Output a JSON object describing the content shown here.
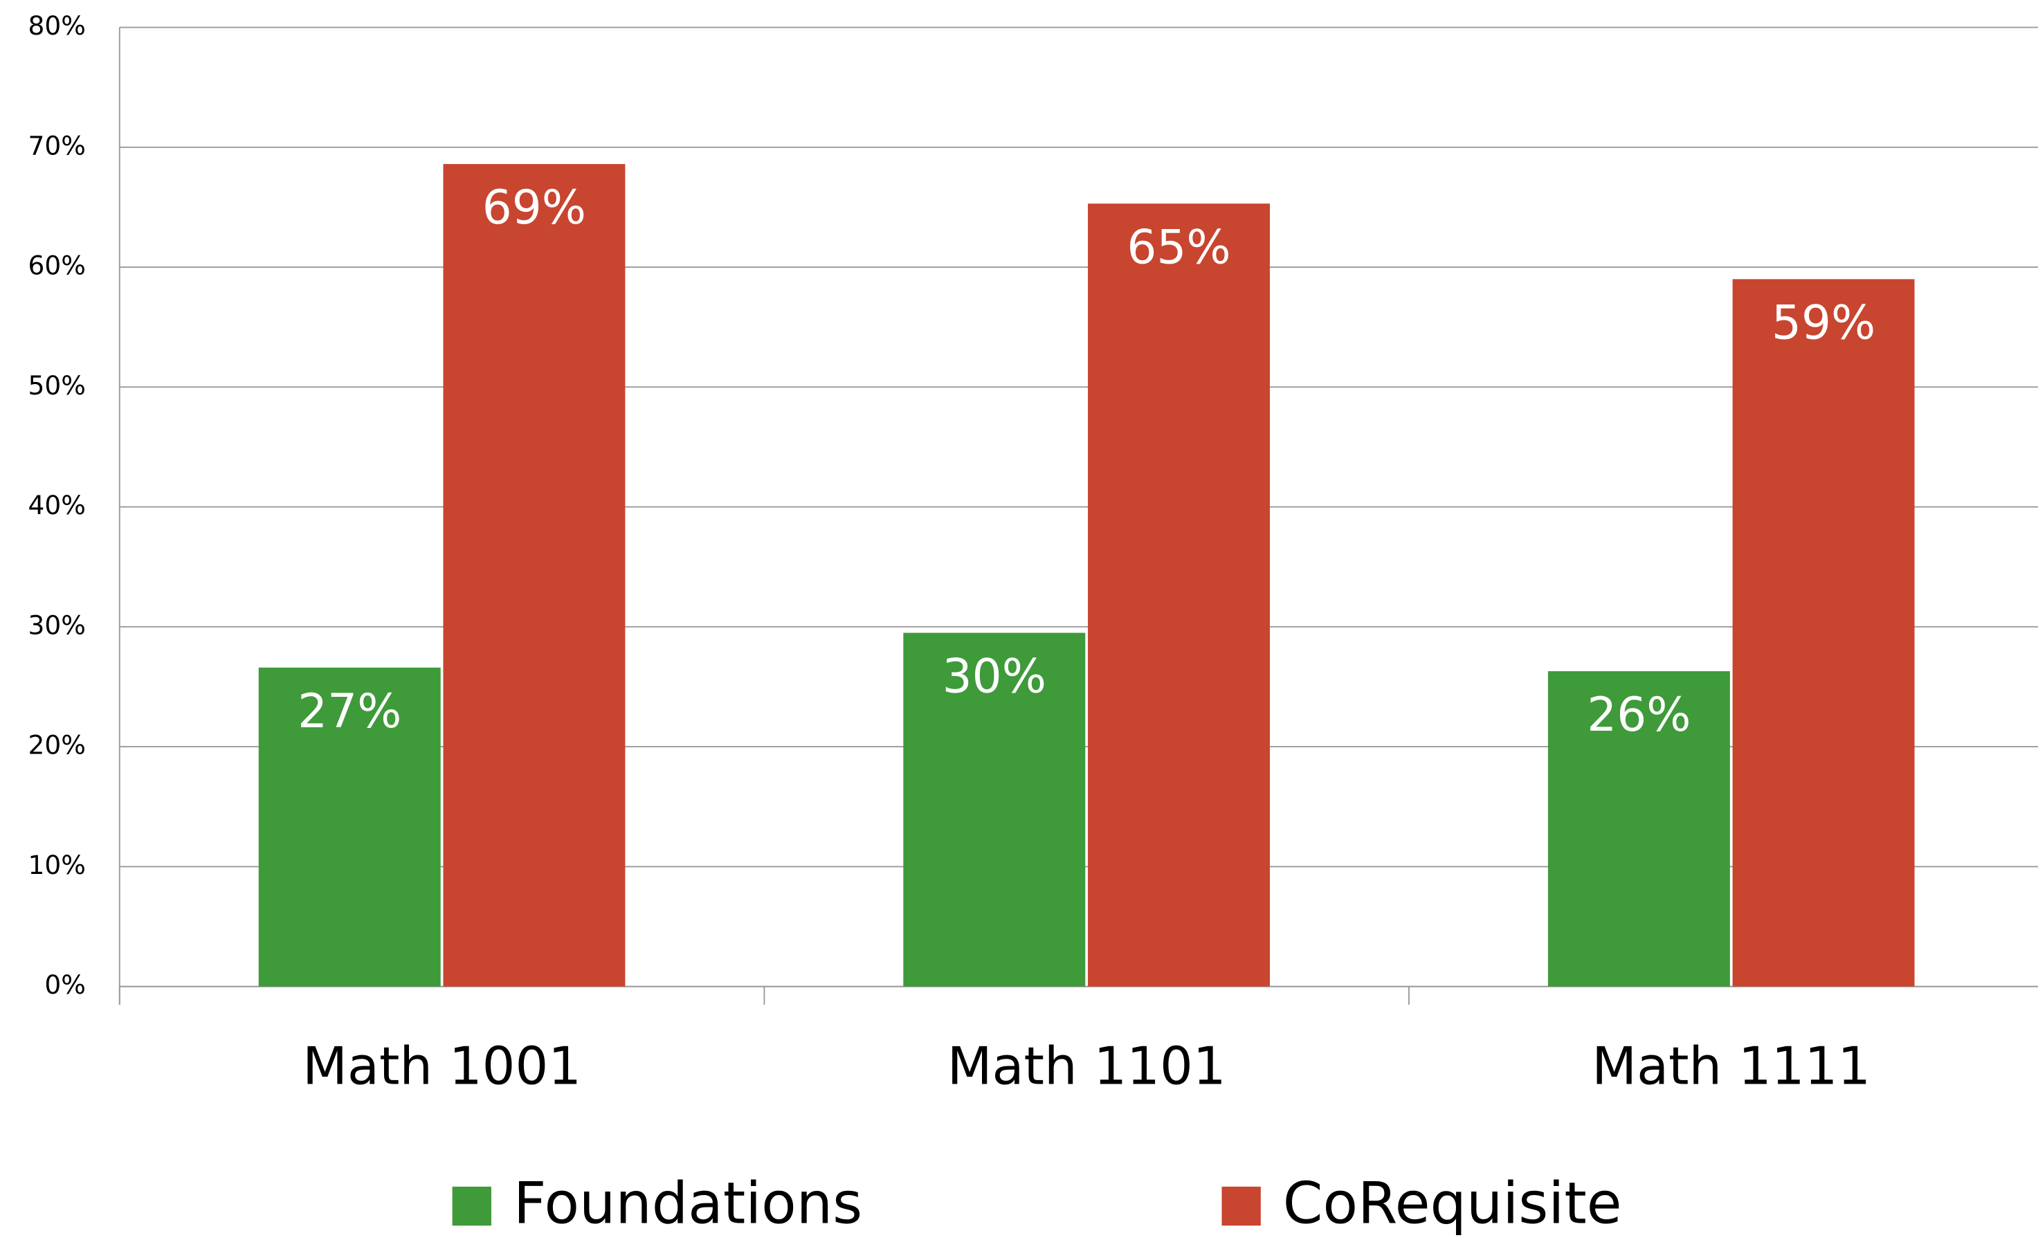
{
  "chart_data": {
    "type": "bar",
    "categories": [
      "Math 1001",
      "Math 1101",
      "Math 1111"
    ],
    "series": [
      {
        "name": "Foundations",
        "color": "#3f9a3a",
        "values": [
          26.6,
          29.5,
          26.3
        ],
        "value_labels": [
          "27%",
          "30%",
          "26%"
        ]
      },
      {
        "name": "CoRequisite",
        "color": "#c8452f",
        "values": [
          68.6,
          65.3,
          59.0
        ],
        "value_labels": [
          "69%",
          "65%",
          "59%"
        ]
      }
    ],
    "ylim": [
      0,
      80
    ],
    "yticks": [
      {
        "value": 0,
        "label": "0%"
      },
      {
        "value": 10,
        "label": "10%"
      },
      {
        "value": 20,
        "label": "20%"
      },
      {
        "value": 30,
        "label": "30%"
      },
      {
        "value": 40,
        "label": "40%"
      },
      {
        "value": 50,
        "label": "50%"
      },
      {
        "value": 60,
        "label": "60%"
      },
      {
        "value": 70,
        "label": "70%"
      },
      {
        "value": 80,
        "label": "80%"
      }
    ],
    "grid": true,
    "legend": "bottom"
  }
}
